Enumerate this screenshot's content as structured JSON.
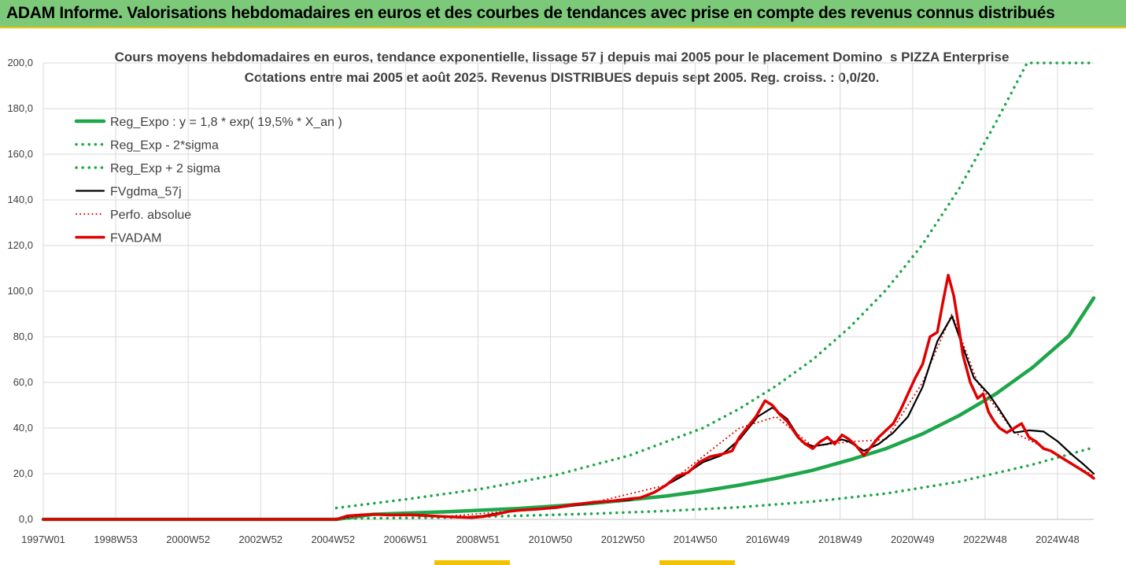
{
  "banner": {
    "title": "ADAM Informe. Valorisations hebdomadaires en euros et des courbes de tendances avec prise en compte des revenus connus distribués"
  },
  "colors": {
    "banner_bg": "#7dc97a",
    "reg_expo": "#1ea64a",
    "sigma": "#1ea64a",
    "fvgdma": "#000000",
    "perfo": "#e00000",
    "fvadam": "#e00000"
  },
  "chart_data": {
    "type": "line",
    "title": "Cours moyens hebdomadaires en euros, tendance exponentielle, lissage 57 j depuis mai 2005 pour le placement Domino_s PIZZA Enterprise",
    "subtitle": "Cotations entre mai 2005 et août 2025.  Revenus DISTRIBUES depuis sept 2005.  Reg. croiss. : 0,0/20.",
    "xlabel": "",
    "ylabel": "",
    "ylim": [
      0,
      200
    ],
    "xlim": [
      1997.0,
      2025.67
    ],
    "grid": true,
    "legend_position": "top-left",
    "x_tick_labels": [
      "1997W01",
      "1998W53",
      "2000W52",
      "2002W52",
      "2004W52",
      "2006W51",
      "2008W51",
      "2010W50",
      "2012W50",
      "2014W50",
      "2016W49",
      "2018W49",
      "2020W49",
      "2022W48",
      "2024W48"
    ],
    "y_tick_labels": [
      "0,0",
      "20,0",
      "40,0",
      "60,0",
      "80,0",
      "100,0",
      "120,0",
      "140,0",
      "160,0",
      "180,0",
      "200,0"
    ],
    "legend": [
      "Reg_Expo : y = 1,8 * exp( 19,5% *  X_an )",
      "Reg_Exp - 2*sigma",
      "Reg_Exp + 2 sigma",
      "FVgdma_57j",
      "Perfo. absolue",
      "FVADAM"
    ],
    "series": [
      {
        "name": "Reg_Expo : y = 1,8 * exp( 19,5% *  X_an )",
        "style": "solid-thick",
        "x": [
          1997.0,
          2005.0,
          2006.0,
          2008.0,
          2010.0,
          2012.0,
          2014.0,
          2015.0,
          2016.0,
          2017.0,
          2018.0,
          2019.0,
          2020.0,
          2021.0,
          2022.0,
          2023.0,
          2024.0,
          2025.0,
          2025.67
        ],
        "y": [
          0,
          0,
          2.2,
          3.3,
          4.8,
          7.0,
          10.2,
          12.4,
          15.0,
          18.0,
          21.5,
          26.0,
          31.0,
          37.5,
          45.5,
          55.0,
          66.5,
          80.5,
          97.0
        ]
      },
      {
        "name": "Reg_Exp - 2*sigma",
        "style": "dotted",
        "x": [
          2005.0,
          2008.0,
          2010.0,
          2012.0,
          2014.0,
          2016.0,
          2018.0,
          2020.0,
          2022.0,
          2024.0,
          2025.67
        ],
        "y": [
          0.3,
          0.8,
          1.6,
          2.5,
          3.7,
          5.3,
          7.8,
          11.3,
          16.5,
          24.0,
          31.5
        ]
      },
      {
        "name": "Reg_Exp + 2 sigma",
        "style": "dotted",
        "x": [
          2005.0,
          2007.0,
          2009.0,
          2011.0,
          2013.0,
          2015.0,
          2016.0,
          2017.0,
          2018.0,
          2019.0,
          2020.0,
          2021.0,
          2022.0,
          2023.0,
          2023.85,
          2025.67
        ],
        "y": [
          5.0,
          9.0,
          13.5,
          19.5,
          28.0,
          40.0,
          48.5,
          58.5,
          70.0,
          84.0,
          100.5,
          120.5,
          145.0,
          174.0,
          200.0,
          200.0
        ]
      },
      {
        "name": "FVgdma_57j",
        "style": "solid",
        "x": [
          1997.0,
          2005.0,
          2005.5,
          2006.0,
          2007.0,
          2008.0,
          2008.5,
          2009.0,
          2009.5,
          2010.0,
          2011.0,
          2012.0,
          2013.0,
          2013.5,
          2014.0,
          2014.5,
          2015.0,
          2015.5,
          2016.0,
          2016.5,
          2016.9,
          2017.3,
          2017.7,
          2018.0,
          2018.4,
          2018.8,
          2019.0,
          2019.4,
          2019.8,
          2020.2,
          2020.6,
          2021.0,
          2021.4,
          2021.8,
          2022.0,
          2022.4,
          2022.8,
          2023.1,
          2023.5,
          2023.9,
          2024.3,
          2024.7,
          2025.1,
          2025.4,
          2025.67
        ],
        "y": [
          0,
          0,
          1.8,
          2.0,
          2.0,
          1.2,
          0.9,
          1.5,
          3.0,
          3.8,
          5.0,
          7.2,
          8.5,
          10.5,
          15.0,
          19.5,
          25.0,
          28.0,
          35.0,
          45.0,
          49.0,
          44.0,
          34.0,
          32.0,
          33.0,
          35.0,
          34.0,
          30.0,
          33.0,
          38.0,
          45.0,
          58.0,
          78.0,
          89.0,
          80.0,
          62.0,
          55.0,
          48.0,
          38.0,
          39.0,
          38.5,
          34.0,
          28.0,
          24.0,
          20.0
        ]
      },
      {
        "name": "Perfo. absolue",
        "style": "dotted",
        "x": [
          1997.0,
          2005.0,
          2006.0,
          2008.0,
          2010.0,
          2012.0,
          2014.0,
          2016.0,
          2017.0,
          2018.0,
          2019.0,
          2020.0,
          2021.0,
          2021.8,
          2022.5,
          2023.5,
          2024.5,
          2025.67
        ],
        "y": [
          0,
          0,
          2.0,
          1.3,
          3.9,
          7.3,
          15.0,
          40.0,
          45.0,
          32.0,
          34.0,
          35.0,
          60.0,
          90.0,
          60.0,
          38.0,
          30.0,
          19.0
        ]
      },
      {
        "name": "FVADAM",
        "style": "solid-thick",
        "x": [
          1997.0,
          2005.0,
          2005.3,
          2005.7,
          2006.0,
          2006.5,
          2007.0,
          2007.5,
          2008.0,
          2008.3,
          2008.7,
          2009.0,
          2009.3,
          2009.7,
          2010.0,
          2010.5,
          2011.0,
          2011.5,
          2012.0,
          2012.5,
          2013.0,
          2013.3,
          2013.7,
          2014.0,
          2014.3,
          2014.6,
          2014.9,
          2015.2,
          2015.5,
          2015.8,
          2016.0,
          2016.2,
          2016.45,
          2016.7,
          2016.9,
          2017.1,
          2017.3,
          2017.6,
          2017.8,
          2018.0,
          2018.2,
          2018.4,
          2018.6,
          2018.8,
          2019.0,
          2019.2,
          2019.4,
          2019.6,
          2019.8,
          2020.0,
          2020.2,
          2020.4,
          2020.6,
          2020.8,
          2021.0,
          2021.2,
          2021.4,
          2021.55,
          2021.7,
          2021.85,
          2021.95,
          2022.1,
          2022.3,
          2022.5,
          2022.65,
          2022.8,
          2022.95,
          2023.1,
          2023.3,
          2023.5,
          2023.7,
          2023.9,
          2024.1,
          2024.3,
          2024.5,
          2024.7,
          2024.9,
          2025.1,
          2025.3,
          2025.5,
          2025.67
        ],
        "y": [
          0,
          0,
          1.5,
          2.0,
          2.2,
          1.9,
          2.0,
          1.6,
          1.2,
          1.0,
          0.8,
          1.2,
          2.0,
          3.5,
          4.0,
          4.5,
          5.2,
          6.5,
          7.5,
          8.0,
          9.0,
          9.5,
          12.0,
          15.0,
          19.0,
          20.5,
          25.0,
          27.5,
          28.5,
          30.0,
          36.0,
          40.0,
          45.0,
          52.0,
          50.0,
          46.0,
          43.0,
          36.0,
          33.0,
          31.0,
          34.0,
          36.0,
          33.0,
          37.0,
          35.0,
          32.0,
          28.0,
          32.0,
          36.0,
          39.0,
          42.0,
          48.0,
          55.0,
          62.0,
          68.0,
          80.0,
          82.0,
          95.0,
          107.0,
          98.0,
          88.0,
          72.0,
          60.0,
          53.0,
          55.0,
          47.0,
          43.0,
          40.0,
          38.0,
          40.0,
          42.0,
          36.0,
          34.0,
          31.0,
          30.0,
          28.0,
          26.0,
          24.0,
          22.0,
          20.0,
          18.0
        ]
      }
    ]
  }
}
